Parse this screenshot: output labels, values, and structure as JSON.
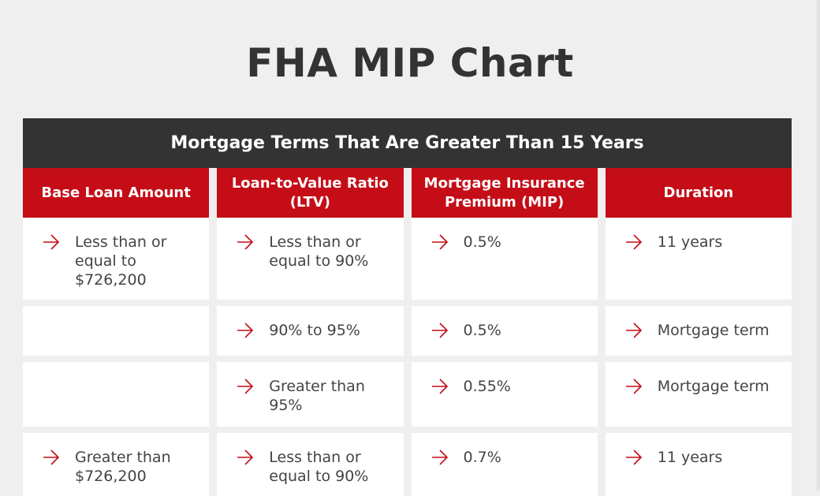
{
  "title": "FHA MIP Chart",
  "table": {
    "header": "Mortgage Terms That Are Greater Than 15 Years",
    "columns": [
      "Base Loan Amount",
      "Loan-to-Value Ratio\n(LTV)",
      "Mortgage Insurance\nPremium (MIP)",
      "Duration"
    ],
    "rows": [
      [
        "Less than or\nequal to\n$726,200",
        "Less than or\nequal to 90%",
        "0.5%",
        "11 years"
      ],
      [
        "",
        "90% to 95%",
        "0.5%",
        "Mortgage term"
      ],
      [
        "",
        "Greater than\n95%",
        "0.55%",
        "Mortgage term"
      ],
      [
        "Greater than\n$726,200",
        "Less than or\nequal to 90%",
        "0.7%",
        "11 years"
      ]
    ]
  },
  "icons": {
    "bullet": "arrow-right-icon"
  },
  "colors": {
    "accent": "#c40d17",
    "header_bg": "#333333",
    "title_text": "#333333",
    "body_text": "#444444",
    "background": "#efefef",
    "cell_bg": "#ffffff"
  }
}
